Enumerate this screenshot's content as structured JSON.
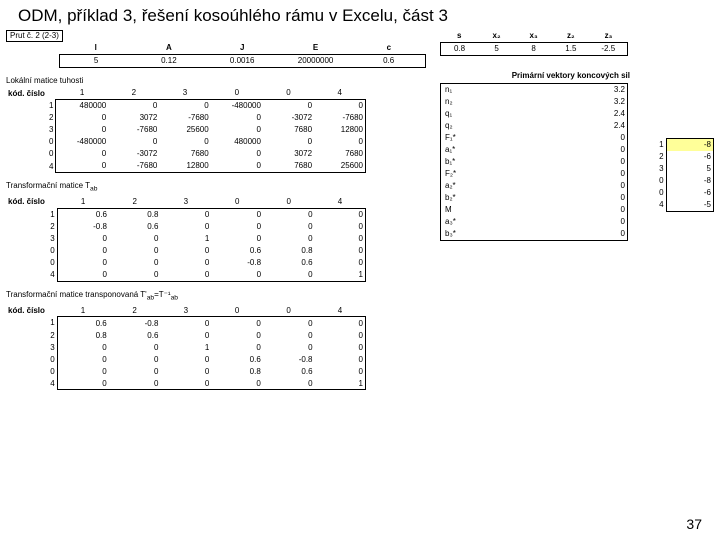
{
  "title": "ODM, příklad 3, řešení kosoúhlého rámu v Excelu, část 3",
  "page_num": "37",
  "prut_label": "Prut č. 2 (2-3)",
  "params": {
    "headers": [
      "l",
      "A",
      "J",
      "E",
      "c",
      "s",
      "x₂",
      "x₃",
      "z₂",
      "z₃"
    ],
    "values": [
      "5",
      "0.12",
      "0.0016",
      "20000000",
      "0.6",
      "0.8",
      "5",
      "8",
      "1.5",
      "-2.5"
    ]
  },
  "stiffness": {
    "title": "Lokální matice tuhosti",
    "kod": "kód. číslo",
    "col_heads": [
      "1",
      "2",
      "3",
      "0",
      "0",
      "4"
    ],
    "rows": [
      {
        "h": "1",
        "c": [
          "480000",
          "0",
          "0",
          "-480000",
          "0",
          "0"
        ]
      },
      {
        "h": "2",
        "c": [
          "0",
          "3072",
          "-7680",
          "0",
          "-3072",
          "-7680"
        ]
      },
      {
        "h": "3",
        "c": [
          "0",
          "-7680",
          "25600",
          "0",
          "7680",
          "12800"
        ]
      },
      {
        "h": "0",
        "c": [
          "-480000",
          "0",
          "0",
          "480000",
          "0",
          "0"
        ]
      },
      {
        "h": "0",
        "c": [
          "0",
          "-3072",
          "7680",
          "0",
          "3072",
          "7680"
        ]
      },
      {
        "h": "4",
        "c": [
          "0",
          "-7680",
          "12800",
          "0",
          "7680",
          "25600"
        ]
      }
    ]
  },
  "trans": {
    "title": "Transformační matice T",
    "sub": "ab",
    "kod": "kód. číslo",
    "col_heads": [
      "1",
      "2",
      "3",
      "0",
      "0",
      "4"
    ],
    "rows": [
      {
        "h": "1",
        "c": [
          "0.6",
          "0.8",
          "0",
          "0",
          "0",
          "0"
        ]
      },
      {
        "h": "2",
        "c": [
          "-0.8",
          "0.6",
          "0",
          "0",
          "0",
          "0"
        ]
      },
      {
        "h": "3",
        "c": [
          "0",
          "0",
          "1",
          "0",
          "0",
          "0"
        ]
      },
      {
        "h": "0",
        "c": [
          "0",
          "0",
          "0",
          "0.6",
          "0.8",
          "0"
        ]
      },
      {
        "h": "0",
        "c": [
          "0",
          "0",
          "0",
          "-0.8",
          "0.6",
          "0"
        ]
      },
      {
        "h": "4",
        "c": [
          "0",
          "0",
          "0",
          "0",
          "0",
          "1"
        ]
      }
    ]
  },
  "transT": {
    "title": "Transformační matice transponovaná T'",
    "sub": "ab",
    "eq": "=T⁻¹",
    "kod": "kód. číslo",
    "col_heads": [
      "1",
      "2",
      "3",
      "0",
      "0",
      "4"
    ],
    "rows": [
      {
        "h": "1",
        "c": [
          "0.6",
          "-0.8",
          "0",
          "0",
          "0",
          "0"
        ]
      },
      {
        "h": "2",
        "c": [
          "0.8",
          "0.6",
          "0",
          "0",
          "0",
          "0"
        ]
      },
      {
        "h": "3",
        "c": [
          "0",
          "0",
          "1",
          "0",
          "0",
          "0"
        ]
      },
      {
        "h": "0",
        "c": [
          "0",
          "0",
          "0",
          "0.6",
          "-0.8",
          "0"
        ]
      },
      {
        "h": "0",
        "c": [
          "0",
          "0",
          "0",
          "0.8",
          "0.6",
          "0"
        ]
      },
      {
        "h": "4",
        "c": [
          "0",
          "0",
          "0",
          "0",
          "0",
          "1"
        ]
      }
    ]
  },
  "primary": {
    "title": "Primární vektory koncových sil",
    "rows": [
      {
        "l": "n₁",
        "v": "3.2"
      },
      {
        "l": "n₂",
        "v": "3.2"
      },
      {
        "l": "q₁",
        "v": "2.4"
      },
      {
        "l": "q₂",
        "v": "2.4"
      },
      {
        "l": "F₁*",
        "v": "0"
      },
      {
        "l": "a₁*",
        "v": "0"
      },
      {
        "l": "b₁*",
        "v": "0"
      },
      {
        "l": "F₂*",
        "v": "0"
      },
      {
        "l": "a₂*",
        "v": "0"
      },
      {
        "l": "b₂*",
        "v": "0"
      },
      {
        "l": "M",
        "v": "0"
      },
      {
        "l": "a₃*",
        "v": "0"
      },
      {
        "l": "b₃*",
        "v": "0"
      }
    ]
  },
  "idx_vec": {
    "rows": [
      {
        "i": "1",
        "v": "-8"
      },
      {
        "i": "2",
        "v": "-6"
      },
      {
        "i": "3",
        "v": "5"
      },
      {
        "i": "0",
        "v": "-8"
      },
      {
        "i": "0",
        "v": "-6"
      },
      {
        "i": "4",
        "v": "-5"
      }
    ]
  }
}
